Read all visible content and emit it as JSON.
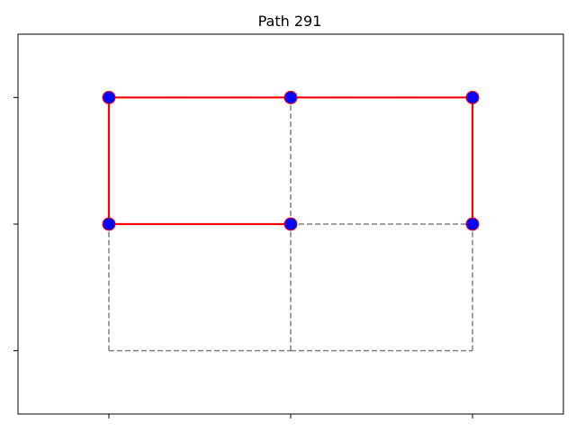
{
  "chart_data": {
    "type": "graph-path",
    "title": "Path 291",
    "xlim": [
      -0.5,
      2.5
    ],
    "ylim": [
      -0.5,
      2.5
    ],
    "x_ticks": [
      0,
      1,
      2
    ],
    "y_ticks": [
      0,
      1,
      2
    ],
    "grid_edges": [
      [
        [
          0,
          0
        ],
        [
          1,
          0
        ]
      ],
      [
        [
          1,
          0
        ],
        [
          2,
          0
        ]
      ],
      [
        [
          0,
          0
        ],
        [
          0,
          1
        ]
      ],
      [
        [
          1,
          0
        ],
        [
          1,
          1
        ]
      ],
      [
        [
          2,
          0
        ],
        [
          2,
          1
        ]
      ],
      [
        [
          0,
          1
        ],
        [
          1,
          1
        ]
      ],
      [
        [
          1,
          1
        ],
        [
          2,
          1
        ]
      ],
      [
        [
          0,
          1
        ],
        [
          0,
          2
        ]
      ],
      [
        [
          1,
          1
        ],
        [
          1,
          2
        ]
      ],
      [
        [
          2,
          1
        ],
        [
          2,
          2
        ]
      ],
      [
        [
          0,
          2
        ],
        [
          1,
          2
        ]
      ],
      [
        [
          1,
          2
        ],
        [
          2,
          2
        ]
      ]
    ],
    "path": [
      [
        1,
        1
      ],
      [
        0,
        1
      ],
      [
        0,
        2
      ],
      [
        1,
        2
      ],
      [
        2,
        2
      ],
      [
        2,
        1
      ]
    ],
    "colors": {
      "grid_edge": "#808080",
      "path": "#ff0000",
      "node_fill": "#0000ff",
      "node_stroke": "#ff0000"
    }
  }
}
